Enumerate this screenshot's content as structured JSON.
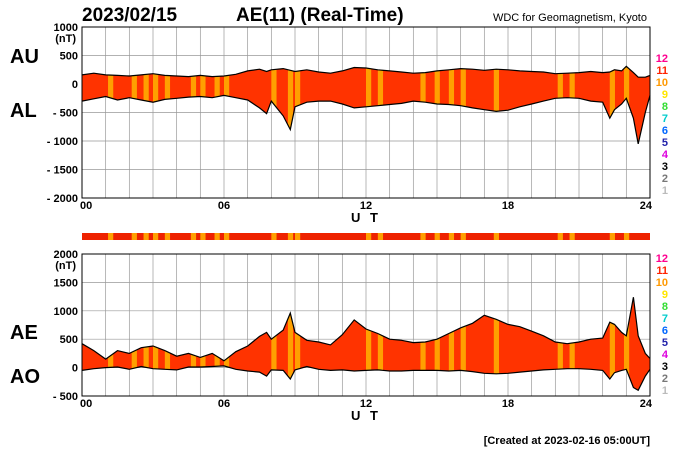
{
  "header": {
    "date": "2023/02/15",
    "title": "AE(11) (Real-Time)",
    "credit": "WDC for Geomagnetism, Kyoto"
  },
  "footer": "[Created at 2023-02-16 05:00UT]",
  "colors": {
    "fill_main": "#ff3300",
    "fill_alt": "#ffa000",
    "envelope": "#000000",
    "grid": "#999999",
    "strip": "#ee2200"
  },
  "station_legend": [
    {
      "label": "12",
      "color": "#ff0090"
    },
    {
      "label": "11",
      "color": "#ff2200"
    },
    {
      "label": "10",
      "color": "#ff9900"
    },
    {
      "label": "9",
      "color": "#ffe600"
    },
    {
      "label": "8",
      "color": "#33dd33"
    },
    {
      "label": "7",
      "color": "#00cccc"
    },
    {
      "label": "6",
      "color": "#0066ff"
    },
    {
      "label": "5",
      "color": "#2222aa"
    },
    {
      "label": "4",
      "color": "#dd00dd"
    },
    {
      "label": "3",
      "color": "#000000"
    },
    {
      "label": "2",
      "color": "#777777"
    },
    {
      "label": "1",
      "color": "#bbbbbb"
    }
  ],
  "station_strip_alt_hours": [
    1.1,
    2.1,
    2.6,
    3.0,
    3.5,
    4.6,
    5.0,
    5.6,
    6.0,
    8.0,
    8.7,
    9.0,
    12.0,
    12.5,
    14.3,
    14.9,
    15.5,
    16.0,
    17.4,
    20.1,
    20.6,
    22.3,
    22.9
  ],
  "chart_data": [
    {
      "type": "area",
      "panel": "AU/AL",
      "left_labels": [
        "AU",
        "AL"
      ],
      "x_ticks": [
        "00",
        "06",
        "12",
        "18",
        "24"
      ],
      "xlabel": "U T",
      "y_unit": "(nT)",
      "y_ticks": [
        "1000",
        "500",
        "0",
        "- 500",
        "- 1000",
        "- 1500",
        "- 2000"
      ],
      "ylim": [
        -2000,
        1000
      ],
      "xlim": [
        0,
        24
      ],
      "x": [
        0,
        0.5,
        1,
        1.5,
        2,
        2.5,
        3,
        3.5,
        4,
        4.5,
        5,
        5.5,
        6,
        6.5,
        7,
        7.5,
        7.8,
        8,
        8.5,
        8.8,
        9,
        9.5,
        10,
        10.5,
        11,
        11.5,
        12,
        12.5,
        13,
        13.5,
        14,
        14.5,
        15,
        15.5,
        16,
        16.5,
        17,
        17.5,
        18,
        18.5,
        19,
        19.5,
        20,
        20.5,
        21,
        21.5,
        22,
        22.3,
        22.5,
        22.8,
        23,
        23.3,
        23.5,
        23.8,
        24
      ],
      "series": [
        {
          "name": "AU",
          "values": [
            160,
            190,
            160,
            150,
            140,
            160,
            180,
            150,
            140,
            130,
            150,
            130,
            140,
            170,
            230,
            260,
            220,
            250,
            270,
            240,
            220,
            250,
            210,
            190,
            230,
            290,
            280,
            250,
            230,
            210,
            190,
            200,
            230,
            250,
            270,
            260,
            240,
            260,
            250,
            230,
            220,
            210,
            180,
            190,
            200,
            220,
            200,
            210,
            250,
            230,
            310,
            200,
            120,
            120,
            150
          ]
        },
        {
          "name": "AL",
          "values": [
            -300,
            -260,
            -220,
            -280,
            -240,
            -280,
            -320,
            -270,
            -250,
            -230,
            -220,
            -240,
            -200,
            -240,
            -280,
            -420,
            -520,
            -300,
            -560,
            -800,
            -400,
            -320,
            -300,
            -300,
            -350,
            -420,
            -400,
            -380,
            -360,
            -340,
            -300,
            -320,
            -350,
            -360,
            -380,
            -420,
            -450,
            -480,
            -460,
            -400,
            -350,
            -300,
            -250,
            -240,
            -250,
            -300,
            -320,
            -600,
            -450,
            -350,
            -250,
            -600,
            -1050,
            -500,
            -200
          ]
        }
      ]
    },
    {
      "type": "area",
      "panel": "AE/AO",
      "left_labels": [
        "AE",
        "AO"
      ],
      "x_ticks": [
        "00",
        "06",
        "12",
        "18",
        "24"
      ],
      "xlabel": "U T",
      "y_unit": "(nT)",
      "y_ticks": [
        "2000",
        "1500",
        "1000",
        "500",
        "0",
        "- 500"
      ],
      "ylim": [
        -500,
        2000
      ],
      "xlim": [
        0,
        24
      ],
      "x": [
        0,
        0.5,
        1,
        1.5,
        2,
        2.5,
        3,
        3.5,
        4,
        4.5,
        5,
        5.5,
        6,
        6.5,
        7,
        7.5,
        7.8,
        8,
        8.5,
        8.8,
        9,
        9.5,
        10,
        10.5,
        11,
        11.5,
        12,
        12.5,
        13,
        13.5,
        14,
        14.5,
        15,
        15.5,
        16,
        16.5,
        17,
        17.5,
        18,
        18.5,
        19,
        19.5,
        20,
        20.5,
        21,
        21.5,
        22,
        22.3,
        22.5,
        22.8,
        23,
        23.3,
        23.5,
        23.8,
        24
      ],
      "series": [
        {
          "name": "AE",
          "values": [
            420,
            300,
            150,
            300,
            250,
            350,
            380,
            300,
            200,
            250,
            180,
            250,
            120,
            280,
            380,
            550,
            620,
            500,
            660,
            960,
            620,
            480,
            450,
            400,
            580,
            840,
            680,
            600,
            500,
            480,
            440,
            450,
            500,
            600,
            700,
            780,
            920,
            850,
            760,
            720,
            640,
            560,
            450,
            420,
            450,
            500,
            520,
            800,
            760,
            620,
            560,
            1240,
            560,
            250,
            160
          ]
        },
        {
          "name": "AO",
          "values": [
            -50,
            -20,
            0,
            10,
            -30,
            20,
            -20,
            -30,
            -40,
            10,
            10,
            20,
            30,
            -30,
            -60,
            -80,
            -150,
            -40,
            -50,
            -200,
            -40,
            20,
            -30,
            -50,
            -40,
            -60,
            -50,
            -40,
            -60,
            -60,
            -50,
            -50,
            -50,
            -60,
            -50,
            -70,
            -100,
            -110,
            -100,
            -80,
            -60,
            -40,
            -30,
            -20,
            -20,
            -30,
            -50,
            -200,
            -90,
            -50,
            -30,
            -350,
            -400,
            -150,
            -30
          ]
        }
      ]
    }
  ]
}
